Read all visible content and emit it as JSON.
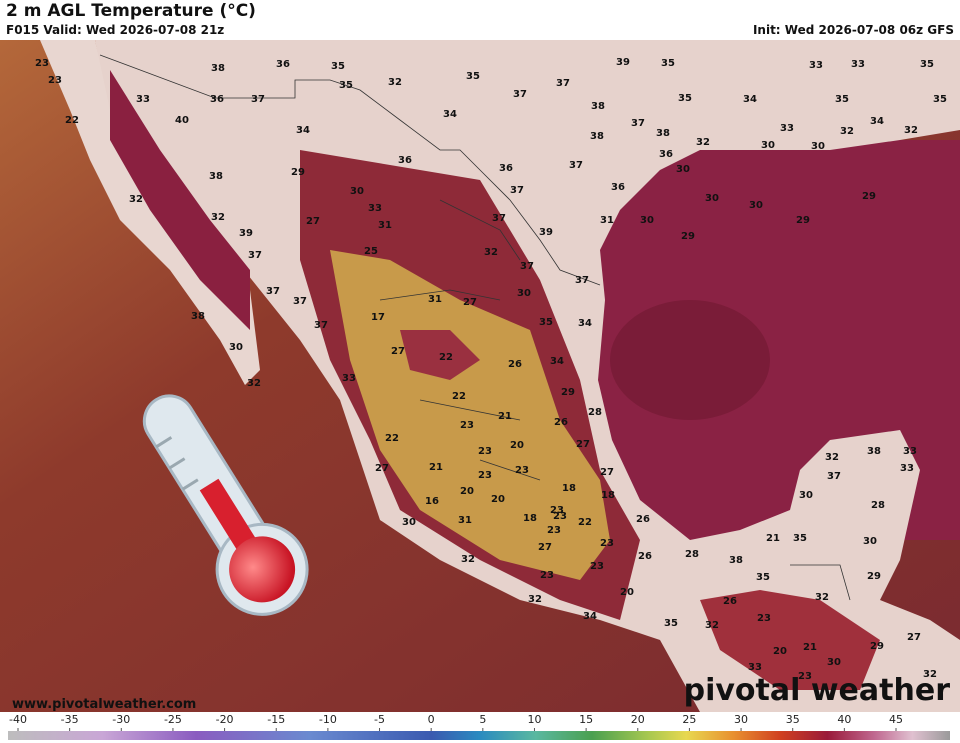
{
  "header": {
    "title": "2 m AGL Temperature (°C)",
    "valid": "F015 Valid: Wed 2026-07-08 21z",
    "init": "Init: Wed 2026-07-08 06z GFS"
  },
  "map": {
    "labels": [
      23,
      23,
      22,
      38,
      36,
      35,
      32,
      35,
      37,
      39,
      35,
      33,
      33,
      35,
      33,
      36,
      37,
      35,
      37,
      38,
      35,
      34,
      35,
      35,
      40,
      34,
      34,
      37,
      38,
      38,
      32,
      33,
      32,
      34,
      32,
      30,
      30,
      36,
      38,
      29,
      36,
      37,
      36,
      30,
      32,
      30,
      37,
      36,
      30,
      30,
      29,
      32,
      33,
      27,
      31,
      37,
      31,
      30,
      29,
      39,
      39,
      29,
      37,
      25,
      32,
      37,
      37,
      37,
      37,
      31,
      27,
      30,
      38,
      17,
      35,
      34,
      37,
      27,
      22,
      26,
      34,
      30,
      32,
      33,
      29,
      22,
      21,
      23,
      26,
      28,
      22,
      23,
      20,
      27,
      27,
      21,
      23,
      23,
      27,
      18,
      18,
      16,
      20,
      20,
      23,
      30,
      31,
      18,
      23,
      22,
      23,
      26,
      27,
      23,
      26,
      32,
      23,
      23,
      20,
      32,
      34,
      35,
      32,
      28,
      38,
      35,
      26,
      23,
      32,
      20,
      21,
      30,
      33,
      23,
      29,
      27,
      32,
      21,
      35,
      30,
      32,
      38,
      33,
      33,
      37,
      28,
      30,
      29
    ]
  },
  "footer": {
    "website": "www.pivotalweather.com",
    "logo": "pivotal weather"
  },
  "colorbar": {
    "ticks": [
      -40,
      -35,
      -30,
      -25,
      -20,
      -15,
      -10,
      -5,
      0,
      5,
      10,
      15,
      20,
      25,
      30,
      35,
      40,
      45
    ]
  }
}
